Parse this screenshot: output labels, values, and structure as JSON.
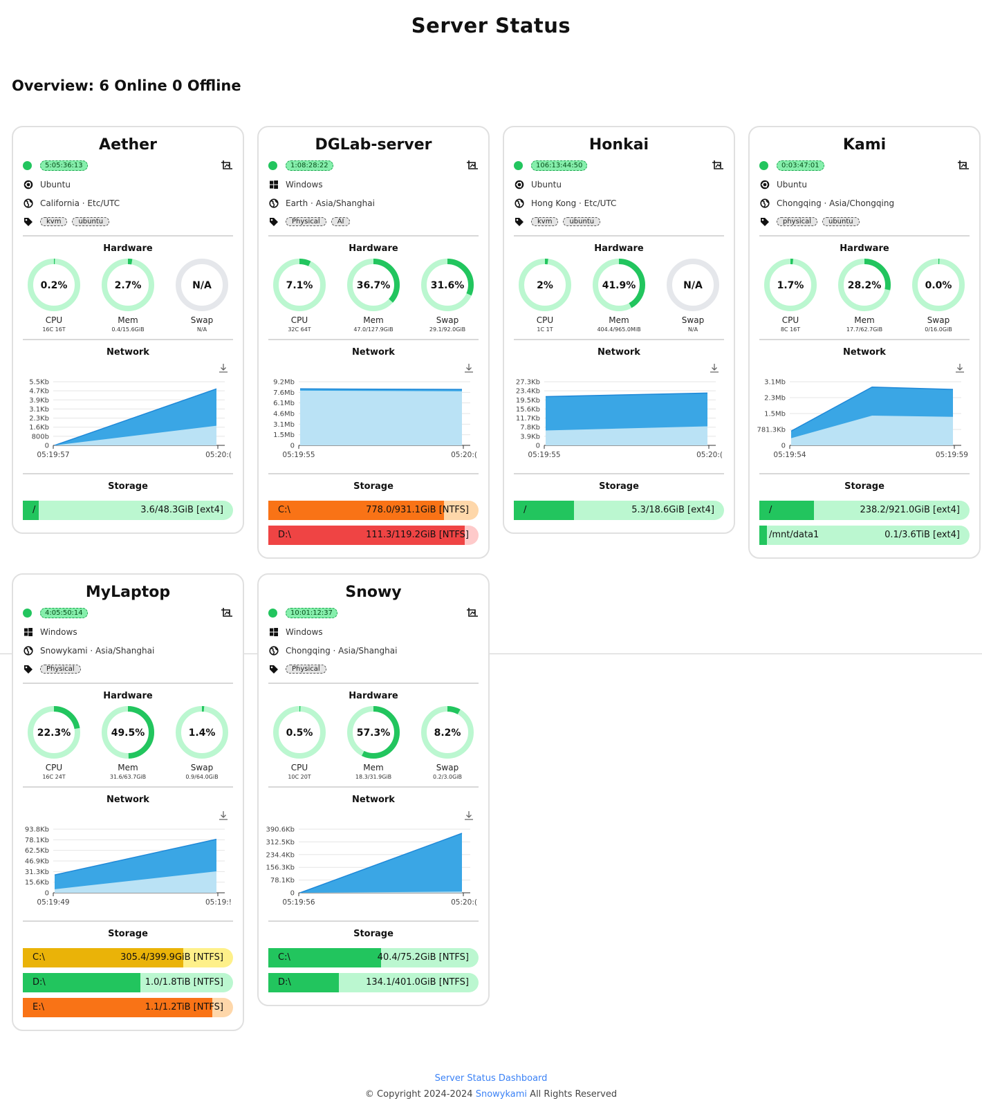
{
  "page": {
    "title": "Server Status",
    "overview": "Overview: 6 Online 0 Offline",
    "footer_link": "Server Status Dashboard",
    "copyright_prefix": "© Copyright 2024-2024",
    "copyright_author": "Snowykami",
    "copyright_suffix": "All Rights Reserved"
  },
  "labels": {
    "hardware": "Hardware",
    "network": "Network",
    "storage": "Storage",
    "cpu": "CPU",
    "mem": "Mem",
    "swap": "Swap"
  },
  "colors": {
    "online": "#22c55e",
    "ring_bg": "#bbf7d0",
    "ring_na": "#e5e7eb",
    "net_dark": "#3aa6e5",
    "net_light": "#bae2f5"
  },
  "servers": [
    {
      "name": "Aether",
      "uptime": "5:05:36:13",
      "os": "Ubuntu",
      "os_icon": "ubuntu-icon",
      "location": "California · Etc/UTC",
      "tags": [
        "kvm",
        "ubuntu"
      ],
      "cpu": {
        "value": 0.2,
        "text": "0.2%",
        "sub": "16C 16T"
      },
      "mem": {
        "value": 2.7,
        "text": "2.7%",
        "sub": "0.4/15.6GiB"
      },
      "swap": {
        "value": null,
        "text": "N/A",
        "sub": "N/A"
      },
      "network": {
        "y_ticks": [
          "5.5Kb",
          "4.7Kb",
          "3.9Kb",
          "3.1Kb",
          "2.3Kb",
          "1.6Kb",
          "800b",
          "0"
        ],
        "x_start": "05:19:57",
        "x_end": "05:20:(",
        "shape": {
          "dark": [
            0.0,
            0.95
          ],
          "light": [
            0.0,
            0.33
          ]
        }
      },
      "storage": [
        {
          "name": "/",
          "value": "3.6/48.3GiB [ext4]",
          "used": 0.075,
          "fill": "#22c55e",
          "bg": "#bbf7d0"
        }
      ]
    },
    {
      "name": "DGLab-server",
      "uptime": "1:08:28:22",
      "os": "Windows",
      "os_icon": "windows-icon",
      "location": "Earth · Asia/Shanghai",
      "tags": [
        "Physical",
        "AI"
      ],
      "cpu": {
        "value": 7.1,
        "text": "7.1%",
        "sub": "32C 64T"
      },
      "mem": {
        "value": 36.7,
        "text": "36.7%",
        "sub": "47.0/127.9GiB"
      },
      "swap": {
        "value": 31.6,
        "text": "31.6%",
        "sub": "29.1/92.0GiB"
      },
      "network": {
        "y_ticks": [
          "9.2Mb",
          "7.6Mb",
          "6.1Mb",
          "4.6Mb",
          "3.1Mb",
          "1.5Mb",
          "0"
        ],
        "x_start": "05:19:55",
        "x_end": "05:20:(",
        "shape": {
          "dark": [
            0.95,
            0.94
          ],
          "light": [
            0.92,
            0.91
          ]
        }
      },
      "storage": [
        {
          "name": "C:\\",
          "value": "778.0/931.1GiB [NTFS]",
          "used": 0.836,
          "fill": "#f97316",
          "bg": "#fed7aa"
        },
        {
          "name": "D:\\",
          "value": "111.3/119.2GiB [NTFS]",
          "used": 0.934,
          "fill": "#ef4444",
          "bg": "#fecaca"
        }
      ]
    },
    {
      "name": "Honkai",
      "uptime": "106:13:44:50",
      "os": "Ubuntu",
      "os_icon": "ubuntu-icon",
      "location": "Hong Kong · Etc/UTC",
      "tags": [
        "kvm",
        "ubuntu"
      ],
      "cpu": {
        "value": 2,
        "text": "2%",
        "sub": "1C 1T"
      },
      "mem": {
        "value": 41.9,
        "text": "41.9%",
        "sub": "404.4/965.0MiB"
      },
      "swap": {
        "value": null,
        "text": "N/A",
        "sub": "N/A"
      },
      "network": {
        "y_ticks": [
          "27.3Kb",
          "23.4Kb",
          "19.5Kb",
          "15.6Kb",
          "11.7Kb",
          "7.8Kb",
          "3.9Kb",
          "0"
        ],
        "x_start": "05:19:55",
        "x_end": "05:20:(",
        "shape": {
          "dark": [
            0.82,
            0.88
          ],
          "light": [
            0.25,
            0.32
          ]
        }
      },
      "storage": [
        {
          "name": "/",
          "value": "5.3/18.6GiB [ext4]",
          "used": 0.285,
          "fill": "#22c55e",
          "bg": "#bbf7d0"
        }
      ]
    },
    {
      "name": "Kami",
      "uptime": "0:03:47:01",
      "os": "Ubuntu",
      "os_icon": "ubuntu-icon",
      "location": "Chongqing · Asia/Chongqing",
      "tags": [
        "physical",
        "ubuntu"
      ],
      "cpu": {
        "value": 1.7,
        "text": "1.7%",
        "sub": "8C 16T"
      },
      "mem": {
        "value": 28.2,
        "text": "28.2%",
        "sub": "17.7/62.7GiB"
      },
      "swap": {
        "value": 0.0,
        "text": "0.0%",
        "sub": "0/16.0GiB"
      },
      "network": {
        "y_ticks": [
          "3.1Mb",
          "2.3Mb",
          "1.5Mb",
          "781.3Kb",
          "0"
        ],
        "x_start": "05:19:54",
        "x_end": "05:19:59",
        "shape": {
          "dark": [
            0.24,
            0.98,
            0.94
          ],
          "light": [
            0.12,
            0.5,
            0.48
          ]
        }
      },
      "storage": [
        {
          "name": "/",
          "value": "238.2/921.0GiB [ext4]",
          "used": 0.26,
          "fill": "#22c55e",
          "bg": "#bbf7d0"
        },
        {
          "name": "/mnt/data1",
          "value": "0.1/3.6TiB [ext4]",
          "used": 0.035,
          "fill": "#22c55e",
          "bg": "#bbf7d0"
        }
      ]
    },
    {
      "name": "MyLaptop",
      "uptime": "4:05:50:14",
      "os": "Windows",
      "os_icon": "windows-icon",
      "location": "Snowykami · Asia/Shanghai",
      "tags": [
        "Physical"
      ],
      "cpu": {
        "value": 22.3,
        "text": "22.3%",
        "sub": "16C 24T"
      },
      "mem": {
        "value": 49.5,
        "text": "49.5%",
        "sub": "31.6/63.7GiB"
      },
      "swap": {
        "value": 1.4,
        "text": "1.4%",
        "sub": "0.9/64.0GiB"
      },
      "network": {
        "y_ticks": [
          "93.8Kb",
          "78.1Kb",
          "62.5Kb",
          "46.9Kb",
          "31.3Kb",
          "15.6Kb",
          "0"
        ],
        "x_start": "05:19:49",
        "x_end": "05:19:!",
        "shape": {
          "dark": [
            0.3,
            0.9
          ],
          "light": [
            0.06,
            0.36
          ]
        }
      },
      "storage": [
        {
          "name": "C:\\",
          "value": "305.4/399.9GiB [NTFS]",
          "used": 0.764,
          "fill": "#eab308",
          "bg": "#fef08a"
        },
        {
          "name": "D:\\",
          "value": "1.0/1.8TiB [NTFS]",
          "used": 0.56,
          "fill": "#22c55e",
          "bg": "#bbf7d0"
        },
        {
          "name": "E:\\",
          "value": "1.1/1.2TiB [NTFS]",
          "used": 0.9,
          "fill": "#f97316",
          "bg": "#fed7aa"
        }
      ]
    },
    {
      "name": "Snowy",
      "uptime": "10:01:12:37",
      "os": "Windows",
      "os_icon": "windows-icon",
      "location": "Chongqing · Asia/Shanghai",
      "tags": [
        "Physical"
      ],
      "cpu": {
        "value": 0.5,
        "text": "0.5%",
        "sub": "10C 20T"
      },
      "mem": {
        "value": 57.3,
        "text": "57.3%",
        "sub": "18.3/31.9GiB"
      },
      "swap": {
        "value": 8.2,
        "text": "8.2%",
        "sub": "0.2/3.0GiB"
      },
      "network": {
        "y_ticks": [
          "390.6Kb",
          "312.5Kb",
          "234.4Kb",
          "156.3Kb",
          "78.1Kb",
          "0"
        ],
        "x_start": "05:19:56",
        "x_end": "05:20:(",
        "shape": {
          "dark": [
            0.0,
            1.0
          ],
          "light": [
            0.0,
            0.02
          ]
        }
      },
      "storage": [
        {
          "name": "C:\\",
          "value": "40.4/75.2GiB [NTFS]",
          "used": 0.537,
          "fill": "#22c55e",
          "bg": "#bbf7d0"
        },
        {
          "name": "D:\\",
          "value": "134.1/401.0GiB [NTFS]",
          "used": 0.334,
          "fill": "#22c55e",
          "bg": "#bbf7d0"
        }
      ]
    }
  ]
}
